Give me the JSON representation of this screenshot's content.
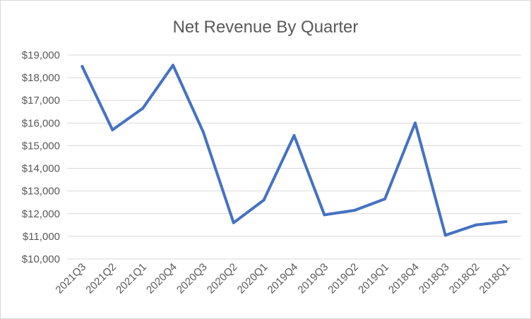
{
  "chart_data": {
    "type": "line",
    "title": "Net Revenue By Quarter",
    "xlabel": "",
    "ylabel": "",
    "categories": [
      "2021Q3",
      "2021Q2",
      "2021Q1",
      "2020Q4",
      "2020Q3",
      "2020Q2",
      "2020Q1",
      "2019Q4",
      "2019Q3",
      "2019Q2",
      "2019Q1",
      "2018Q4",
      "2018Q3",
      "2018Q2",
      "2018Q1"
    ],
    "series": [
      {
        "values": [
          18500,
          15700,
          16650,
          18550,
          15600,
          11600,
          12600,
          15450,
          11950,
          12150,
          12650,
          16000,
          11050,
          11500,
          11650
        ]
      }
    ],
    "ylim": [
      10000,
      19000
    ],
    "yticks": [
      10000,
      11000,
      12000,
      13000,
      14000,
      15000,
      16000,
      17000,
      18000,
      19000
    ],
    "ytick_labels": [
      "$10,000",
      "$11,000",
      "$12,000",
      "$13,000",
      "$14,000",
      "$15,000",
      "$16,000",
      "$17,000",
      "$18,000",
      "$19,000"
    ],
    "grid": true,
    "legend": "none",
    "colors": {
      "series": "#4472c4",
      "grid": "#d9d9d9",
      "text": "#595959"
    }
  }
}
